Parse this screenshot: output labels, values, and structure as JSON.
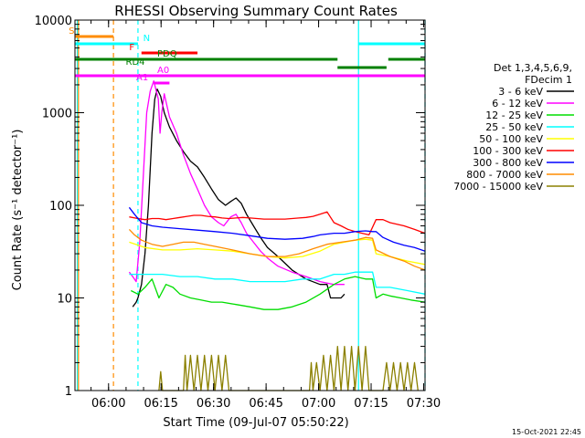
{
  "chart_data": {
    "type": "line",
    "title": "RHESSI Observing Summary Count Rates",
    "xlabel": "Start Time (09-Jul-07 05:50:22)",
    "ylabel": "Count Rate (s⁻¹ detector⁻¹)",
    "yscale": "log",
    "ylim": [
      1,
      10000
    ],
    "xlim_minutes": [
      0,
      100
    ],
    "x_ticks": [
      {
        "t": 9.6,
        "label": "06:00"
      },
      {
        "t": 24.6,
        "label": "06:15"
      },
      {
        "t": 39.6,
        "label": "06:30"
      },
      {
        "t": 54.6,
        "label": "06:45"
      },
      {
        "t": 69.6,
        "label": "07:00"
      },
      {
        "t": 84.6,
        "label": "07:15"
      },
      {
        "t": 99.6,
        "label": "07:30"
      }
    ],
    "y_ticks": [
      {
        "v": 1,
        "label": "1"
      },
      {
        "v": 10,
        "label": "10"
      },
      {
        "v": 100,
        "label": "100"
      },
      {
        "v": 1000,
        "label": "1000"
      },
      {
        "v": 10000,
        "label": "10000"
      }
    ],
    "legend": {
      "header": [
        "Det 1,3,4,5,6,9,",
        "FDecim 1"
      ],
      "placement": "right"
    },
    "series": [
      {
        "name": "3 - 6 keV",
        "color": "#000000",
        "points": [
          [
            16.5,
            8
          ],
          [
            17.5,
            9
          ],
          [
            18,
            10
          ],
          [
            19,
            14
          ],
          [
            20,
            30
          ],
          [
            21,
            100
          ],
          [
            22,
            600
          ],
          [
            22.8,
            1400
          ],
          [
            23.5,
            1800
          ],
          [
            24.5,
            1500
          ],
          [
            25.5,
            1000
          ],
          [
            27,
            700
          ],
          [
            29,
            500
          ],
          [
            31,
            380
          ],
          [
            33,
            300
          ],
          [
            35,
            260
          ],
          [
            37,
            200
          ],
          [
            39,
            150
          ],
          [
            41,
            115
          ],
          [
            43,
            100
          ],
          [
            44.5,
            110
          ],
          [
            46,
            120
          ],
          [
            47.5,
            105
          ],
          [
            49,
            80
          ],
          [
            51,
            60
          ],
          [
            53,
            45
          ],
          [
            55,
            35
          ],
          [
            58,
            28
          ],
          [
            62,
            20
          ],
          [
            66,
            16
          ],
          [
            70,
            14
          ],
          [
            72,
            14
          ],
          [
            73,
            10
          ],
          [
            76,
            10
          ],
          [
            77,
            11
          ]
        ]
      },
      {
        "name": "6 - 12 keV",
        "color": "#ff00ff",
        "points": [
          [
            15.5,
            19
          ],
          [
            16.5,
            17
          ],
          [
            17.5,
            15
          ],
          [
            18.5,
            40
          ],
          [
            19.5,
            200
          ],
          [
            20.5,
            1000
          ],
          [
            21.5,
            1700
          ],
          [
            22.5,
            2200
          ],
          [
            23.8,
            1400
          ],
          [
            24.3,
            600
          ],
          [
            24.8,
            1000
          ],
          [
            25.5,
            1600
          ],
          [
            27,
            900
          ],
          [
            29,
            600
          ],
          [
            31,
            350
          ],
          [
            33,
            220
          ],
          [
            35,
            150
          ],
          [
            37,
            100
          ],
          [
            39,
            75
          ],
          [
            41,
            65
          ],
          [
            42.5,
            60
          ],
          [
            44.5,
            75
          ],
          [
            46,
            80
          ],
          [
            47.5,
            65
          ],
          [
            49,
            50
          ],
          [
            51,
            40
          ],
          [
            53,
            32
          ],
          [
            55,
            27
          ],
          [
            58,
            22
          ],
          [
            62,
            19
          ],
          [
            66,
            17
          ],
          [
            70,
            15
          ],
          [
            74,
            14
          ],
          [
            77,
            14
          ]
        ]
      },
      {
        "name": "12 - 25 keV",
        "color": "#00dd00",
        "points": [
          [
            16,
            12
          ],
          [
            18,
            11
          ],
          [
            20,
            13
          ],
          [
            22,
            16
          ],
          [
            24,
            10
          ],
          [
            26,
            14
          ],
          [
            28,
            13
          ],
          [
            30,
            11
          ],
          [
            33,
            10
          ],
          [
            36,
            9.5
          ],
          [
            39,
            9
          ],
          [
            42,
            9
          ],
          [
            46,
            8.5
          ],
          [
            50,
            8
          ],
          [
            54,
            7.5
          ],
          [
            58,
            7.5
          ],
          [
            62,
            8
          ],
          [
            66,
            9
          ],
          [
            70,
            11
          ],
          [
            74,
            14
          ],
          [
            77,
            16
          ],
          [
            80,
            17
          ],
          [
            83,
            16
          ],
          [
            85,
            16
          ],
          [
            86,
            10
          ],
          [
            88,
            11
          ],
          [
            90,
            10.5
          ],
          [
            93,
            10
          ],
          [
            96,
            9.5
          ],
          [
            100,
            9
          ]
        ]
      },
      {
        "name": "25 - 50 keV",
        "color": "#00ffff",
        "points": [
          [
            15.5,
            18
          ],
          [
            20,
            18
          ],
          [
            25,
            18
          ],
          [
            30,
            17
          ],
          [
            35,
            17
          ],
          [
            40,
            16
          ],
          [
            45,
            16
          ],
          [
            50,
            15
          ],
          [
            55,
            15
          ],
          [
            60,
            15
          ],
          [
            65,
            16
          ],
          [
            70,
            16
          ],
          [
            74,
            18
          ],
          [
            77,
            18
          ],
          [
            80,
            19
          ],
          [
            83,
            19
          ],
          [
            85,
            19
          ],
          [
            86,
            13
          ],
          [
            90,
            13
          ],
          [
            95,
            12
          ],
          [
            100,
            11
          ]
        ]
      },
      {
        "name": "50 - 100 keV",
        "color": "#ffff00",
        "points": [
          [
            15.5,
            40
          ],
          [
            20,
            35
          ],
          [
            25,
            33
          ],
          [
            30,
            33
          ],
          [
            35,
            34
          ],
          [
            40,
            33
          ],
          [
            45,
            32
          ],
          [
            50,
            30
          ],
          [
            55,
            28
          ],
          [
            60,
            27
          ],
          [
            65,
            28
          ],
          [
            70,
            32
          ],
          [
            74,
            38
          ],
          [
            77,
            40
          ],
          [
            80,
            42
          ],
          [
            83,
            43
          ],
          [
            85,
            42
          ],
          [
            86,
            30
          ],
          [
            90,
            28
          ],
          [
            95,
            25
          ],
          [
            100,
            23
          ]
        ]
      },
      {
        "name": "100 - 300 keV",
        "color": "#ff0000",
        "points": [
          [
            15.5,
            75
          ],
          [
            18,
            72
          ],
          [
            20,
            70
          ],
          [
            22,
            72
          ],
          [
            24,
            72
          ],
          [
            26,
            70
          ],
          [
            28,
            72
          ],
          [
            30,
            74
          ],
          [
            32,
            76
          ],
          [
            34,
            78
          ],
          [
            36,
            78
          ],
          [
            38,
            76
          ],
          [
            40,
            75
          ],
          [
            42,
            73
          ],
          [
            44,
            72
          ],
          [
            46,
            73
          ],
          [
            48,
            74
          ],
          [
            50,
            73
          ],
          [
            52,
            72
          ],
          [
            54,
            71
          ],
          [
            56,
            71
          ],
          [
            58,
            71
          ],
          [
            60,
            71
          ],
          [
            62,
            72
          ],
          [
            64,
            73
          ],
          [
            66,
            74
          ],
          [
            68,
            76
          ],
          [
            70,
            80
          ],
          [
            72,
            85
          ],
          [
            74,
            65
          ],
          [
            76,
            60
          ],
          [
            78,
            55
          ],
          [
            80,
            52
          ],
          [
            82,
            50
          ],
          [
            84,
            48
          ],
          [
            86,
            70
          ],
          [
            88,
            70
          ],
          [
            90,
            65
          ],
          [
            94,
            60
          ],
          [
            97,
            55
          ],
          [
            100,
            50
          ]
        ]
      },
      {
        "name": "300 - 800 keV",
        "color": "#0000ff",
        "points": [
          [
            15.5,
            95
          ],
          [
            17,
            80
          ],
          [
            19,
            65
          ],
          [
            22,
            60
          ],
          [
            25,
            58
          ],
          [
            30,
            56
          ],
          [
            35,
            54
          ],
          [
            40,
            52
          ],
          [
            45,
            50
          ],
          [
            50,
            47
          ],
          [
            55,
            44
          ],
          [
            60,
            43
          ],
          [
            65,
            44
          ],
          [
            68,
            46
          ],
          [
            70,
            48
          ],
          [
            74,
            50
          ],
          [
            77,
            50
          ],
          [
            80,
            52
          ],
          [
            83,
            53
          ],
          [
            85,
            52
          ],
          [
            86,
            52
          ],
          [
            88,
            45
          ],
          [
            91,
            40
          ],
          [
            94,
            37
          ],
          [
            97,
            35
          ],
          [
            100,
            32
          ]
        ]
      },
      {
        "name": "800 - 7000 keV",
        "color": "#ff8c00",
        "points": [
          [
            15.5,
            55
          ],
          [
            17,
            48
          ],
          [
            19,
            42
          ],
          [
            22,
            38
          ],
          [
            25,
            36
          ],
          [
            28,
            38
          ],
          [
            31,
            40
          ],
          [
            34,
            40
          ],
          [
            37,
            38
          ],
          [
            40,
            36
          ],
          [
            45,
            33
          ],
          [
            50,
            30
          ],
          [
            55,
            28
          ],
          [
            60,
            28
          ],
          [
            64,
            30
          ],
          [
            68,
            34
          ],
          [
            72,
            38
          ],
          [
            76,
            40
          ],
          [
            80,
            42
          ],
          [
            83,
            45
          ],
          [
            85,
            44
          ],
          [
            86,
            33
          ],
          [
            90,
            28
          ],
          [
            94,
            25
          ],
          [
            97,
            22
          ],
          [
            100,
            20
          ]
        ]
      },
      {
        "name": "7000 - 15000 keV",
        "color": "#8b8000",
        "points": [
          [
            24,
            1
          ],
          [
            24.5,
            1.6
          ],
          [
            25,
            1
          ],
          [
            31,
            1
          ],
          [
            31.5,
            2.4
          ],
          [
            32,
            1
          ],
          [
            33,
            2.4
          ],
          [
            34,
            1
          ],
          [
            35,
            2.4
          ],
          [
            36,
            1
          ],
          [
            37,
            2.4
          ],
          [
            38,
            1
          ],
          [
            39,
            2.4
          ],
          [
            40,
            1
          ],
          [
            41,
            2.4
          ],
          [
            42,
            1
          ],
          [
            43,
            2.4
          ],
          [
            44,
            1
          ],
          [
            67,
            1
          ],
          [
            67.5,
            2
          ],
          [
            68,
            1
          ],
          [
            69,
            2
          ],
          [
            70,
            1
          ],
          [
            71,
            2.4
          ],
          [
            72,
            1
          ],
          [
            73,
            2.4
          ],
          [
            74,
            1
          ],
          [
            75,
            3
          ],
          [
            76,
            1
          ],
          [
            77,
            3
          ],
          [
            78,
            1
          ],
          [
            79,
            3
          ],
          [
            80,
            1
          ],
          [
            81,
            3
          ],
          [
            82,
            1
          ],
          [
            83,
            3
          ],
          [
            84,
            1
          ],
          [
            88,
            1
          ],
          [
            89,
            2
          ],
          [
            90,
            1
          ],
          [
            91,
            2
          ],
          [
            92,
            1
          ],
          [
            93,
            2
          ],
          [
            94,
            1
          ],
          [
            95,
            2
          ],
          [
            96,
            1
          ],
          [
            97,
            2
          ],
          [
            98,
            1
          ]
        ]
      }
    ],
    "state_bars": [
      {
        "label": "S",
        "color": "#ff8c00",
        "start": 0,
        "end": 11
      },
      {
        "label": "N",
        "color": "#00ffff",
        "start": 0,
        "end": 18
      },
      {
        "label": "N",
        "color": "#00ffff",
        "start": 81,
        "end": 100
      },
      {
        "label": "F",
        "color": "#ff0000",
        "start": 19,
        "end": 35
      },
      {
        "label": "PDQ",
        "color": "#008000",
        "start": 0,
        "end": 75
      },
      {
        "label": "PDQ",
        "color": "#008000",
        "start": 89.5,
        "end": 100
      },
      {
        "label": "RD4",
        "color": "#008000",
        "start": 75,
        "end": 89
      },
      {
        "label": "A0",
        "color": "#ff00ff",
        "start": 0,
        "end": 100
      },
      {
        "label": "A1",
        "color": "#ff00ff",
        "start": 22.5,
        "end": 27
      }
    ],
    "vertical_lines": [
      {
        "t": 0.7,
        "color": "#00ffff",
        "style": "solid"
      },
      {
        "t": 1.0,
        "color": "#ff8c00",
        "style": "solid"
      },
      {
        "t": 11,
        "color": "#ff8c00",
        "style": "dashed"
      },
      {
        "t": 18,
        "color": "#00ffff",
        "style": "dashed"
      },
      {
        "t": 81,
        "color": "#00ffff",
        "style": "solid"
      },
      {
        "t": 100,
        "color": "#00ffff",
        "style": "dashed"
      }
    ],
    "footer_timestamp": "15-Oct-2021 22:45"
  }
}
